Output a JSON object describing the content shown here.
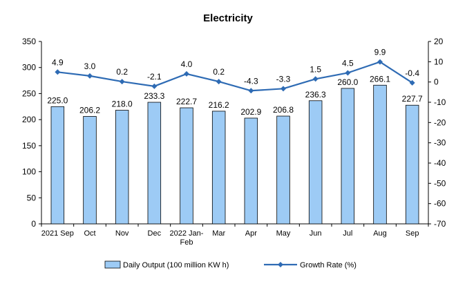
{
  "chart_data": {
    "type": "bar+line",
    "title": "Electricity",
    "categories": [
      "2021 Sep",
      "Oct",
      "Nov",
      "Dec",
      "2022 Jan-Feb",
      "Mar",
      "Apr",
      "May",
      "Jun",
      "Jul",
      "Aug",
      "Sep"
    ],
    "series": [
      {
        "name": "Daily Output (100 million KW h)",
        "type": "bar",
        "axis": "left",
        "values": [
          225.0,
          206.2,
          218.0,
          233.3,
          222.7,
          216.2,
          202.9,
          206.8,
          236.3,
          260.0,
          266.1,
          227.7
        ],
        "labels": [
          "225.0",
          "206.2",
          "218.0",
          "233.3",
          "222.7",
          "216.2",
          "202.9",
          "206.8",
          "236.3",
          "260.0",
          "266.1",
          "227.7"
        ]
      },
      {
        "name": "Growth Rate (%)",
        "type": "line",
        "axis": "right",
        "values": [
          4.9,
          3.0,
          0.2,
          -2.1,
          4.0,
          0.2,
          -4.3,
          -3.3,
          1.5,
          4.5,
          9.9,
          -0.4
        ],
        "labels": [
          "4.9",
          "3.0",
          "0.2",
          "-2.1",
          "4.0",
          "0.2",
          "-4.3",
          "-3.3",
          "1.5",
          "4.5",
          "9.9",
          "-0.4"
        ]
      }
    ],
    "y_left": {
      "min": 0,
      "max": 350,
      "step": 50
    },
    "y_right": {
      "min": -70,
      "max": 20,
      "step": 10
    },
    "grid": false,
    "legend_position": "bottom",
    "colors": {
      "bar_fill": "#9dcbf5",
      "bar_stroke": "#000000",
      "line": "#2e6bb4",
      "marker": "#2e6bb4",
      "axis": "#000000"
    }
  }
}
